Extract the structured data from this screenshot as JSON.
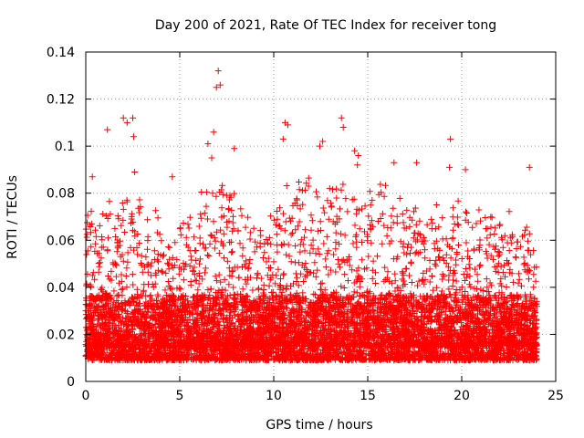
{
  "chart_data": {
    "type": "scatter",
    "title": "Day 200 of 2021, Rate Of TEC Index for receiver tong",
    "xlabel": "GPS time / hours",
    "ylabel": "ROTI / TECUs",
    "xlim": [
      0,
      25
    ],
    "ylim": [
      0,
      0.14
    ],
    "x_ticks": [
      "0",
      "5",
      "10",
      "15",
      "20",
      "25"
    ],
    "y_ticks": [
      "0",
      "0.02",
      "0.04",
      "0.06",
      "0.08",
      "0.1",
      "0.12",
      "0.14"
    ],
    "grid": true,
    "legend": "none",
    "marker": "plus",
    "color": "#ff0000",
    "series": [
      {
        "outliers": [
          {
            "x": 7.05,
            "y": 0.132
          },
          {
            "x": 6.95,
            "y": 0.125
          },
          {
            "x": 7.15,
            "y": 0.126
          },
          {
            "x": 13.6,
            "y": 0.112
          },
          {
            "x": 13.7,
            "y": 0.108
          },
          {
            "x": 2.0,
            "y": 0.112
          },
          {
            "x": 2.2,
            "y": 0.11
          },
          {
            "x": 2.5,
            "y": 0.112
          },
          {
            "x": 2.55,
            "y": 0.104
          },
          {
            "x": 1.15,
            "y": 0.107
          },
          {
            "x": 10.6,
            "y": 0.11
          },
          {
            "x": 10.75,
            "y": 0.109
          },
          {
            "x": 10.5,
            "y": 0.103
          },
          {
            "x": 12.6,
            "y": 0.102
          },
          {
            "x": 12.45,
            "y": 0.1
          },
          {
            "x": 6.5,
            "y": 0.101
          },
          {
            "x": 6.7,
            "y": 0.095
          },
          {
            "x": 19.4,
            "y": 0.103
          },
          {
            "x": 6.8,
            "y": 0.106
          },
          {
            "x": 7.9,
            "y": 0.099
          },
          {
            "x": 14.3,
            "y": 0.098
          },
          {
            "x": 14.5,
            "y": 0.096
          },
          {
            "x": 16.4,
            "y": 0.093
          },
          {
            "x": 17.6,
            "y": 0.093
          },
          {
            "x": 19.35,
            "y": 0.091
          },
          {
            "x": 20.2,
            "y": 0.09
          },
          {
            "x": 23.6,
            "y": 0.091
          },
          {
            "x": 2.6,
            "y": 0.089
          },
          {
            "x": 0.35,
            "y": 0.087
          },
          {
            "x": 4.6,
            "y": 0.087
          }
        ],
        "envelope": [
          {
            "x": 0.0,
            "hi": 0.056
          },
          {
            "x": 1.0,
            "hi": 0.062
          },
          {
            "x": 2.0,
            "hi": 0.066
          },
          {
            "x": 3.0,
            "hi": 0.06
          },
          {
            "x": 4.0,
            "hi": 0.054
          },
          {
            "x": 5.0,
            "hi": 0.055
          },
          {
            "x": 6.0,
            "hi": 0.06
          },
          {
            "x": 7.0,
            "hi": 0.072
          },
          {
            "x": 8.0,
            "hi": 0.064
          },
          {
            "x": 9.0,
            "hi": 0.052
          },
          {
            "x": 10.0,
            "hi": 0.055
          },
          {
            "x": 11.0,
            "hi": 0.068
          },
          {
            "x": 12.0,
            "hi": 0.07
          },
          {
            "x": 13.0,
            "hi": 0.074
          },
          {
            "x": 14.0,
            "hi": 0.076
          },
          {
            "x": 15.0,
            "hi": 0.07
          },
          {
            "x": 16.0,
            "hi": 0.068
          },
          {
            "x": 17.0,
            "hi": 0.062
          },
          {
            "x": 18.0,
            "hi": 0.058
          },
          {
            "x": 19.0,
            "hi": 0.058
          },
          {
            "x": 20.0,
            "hi": 0.06
          },
          {
            "x": 21.0,
            "hi": 0.056
          },
          {
            "x": 22.0,
            "hi": 0.056
          },
          {
            "x": 23.0,
            "hi": 0.058
          },
          {
            "x": 24.0,
            "hi": 0.048
          }
        ],
        "baseline": {
          "low": 0.005,
          "typical": 0.02
        }
      }
    ]
  }
}
